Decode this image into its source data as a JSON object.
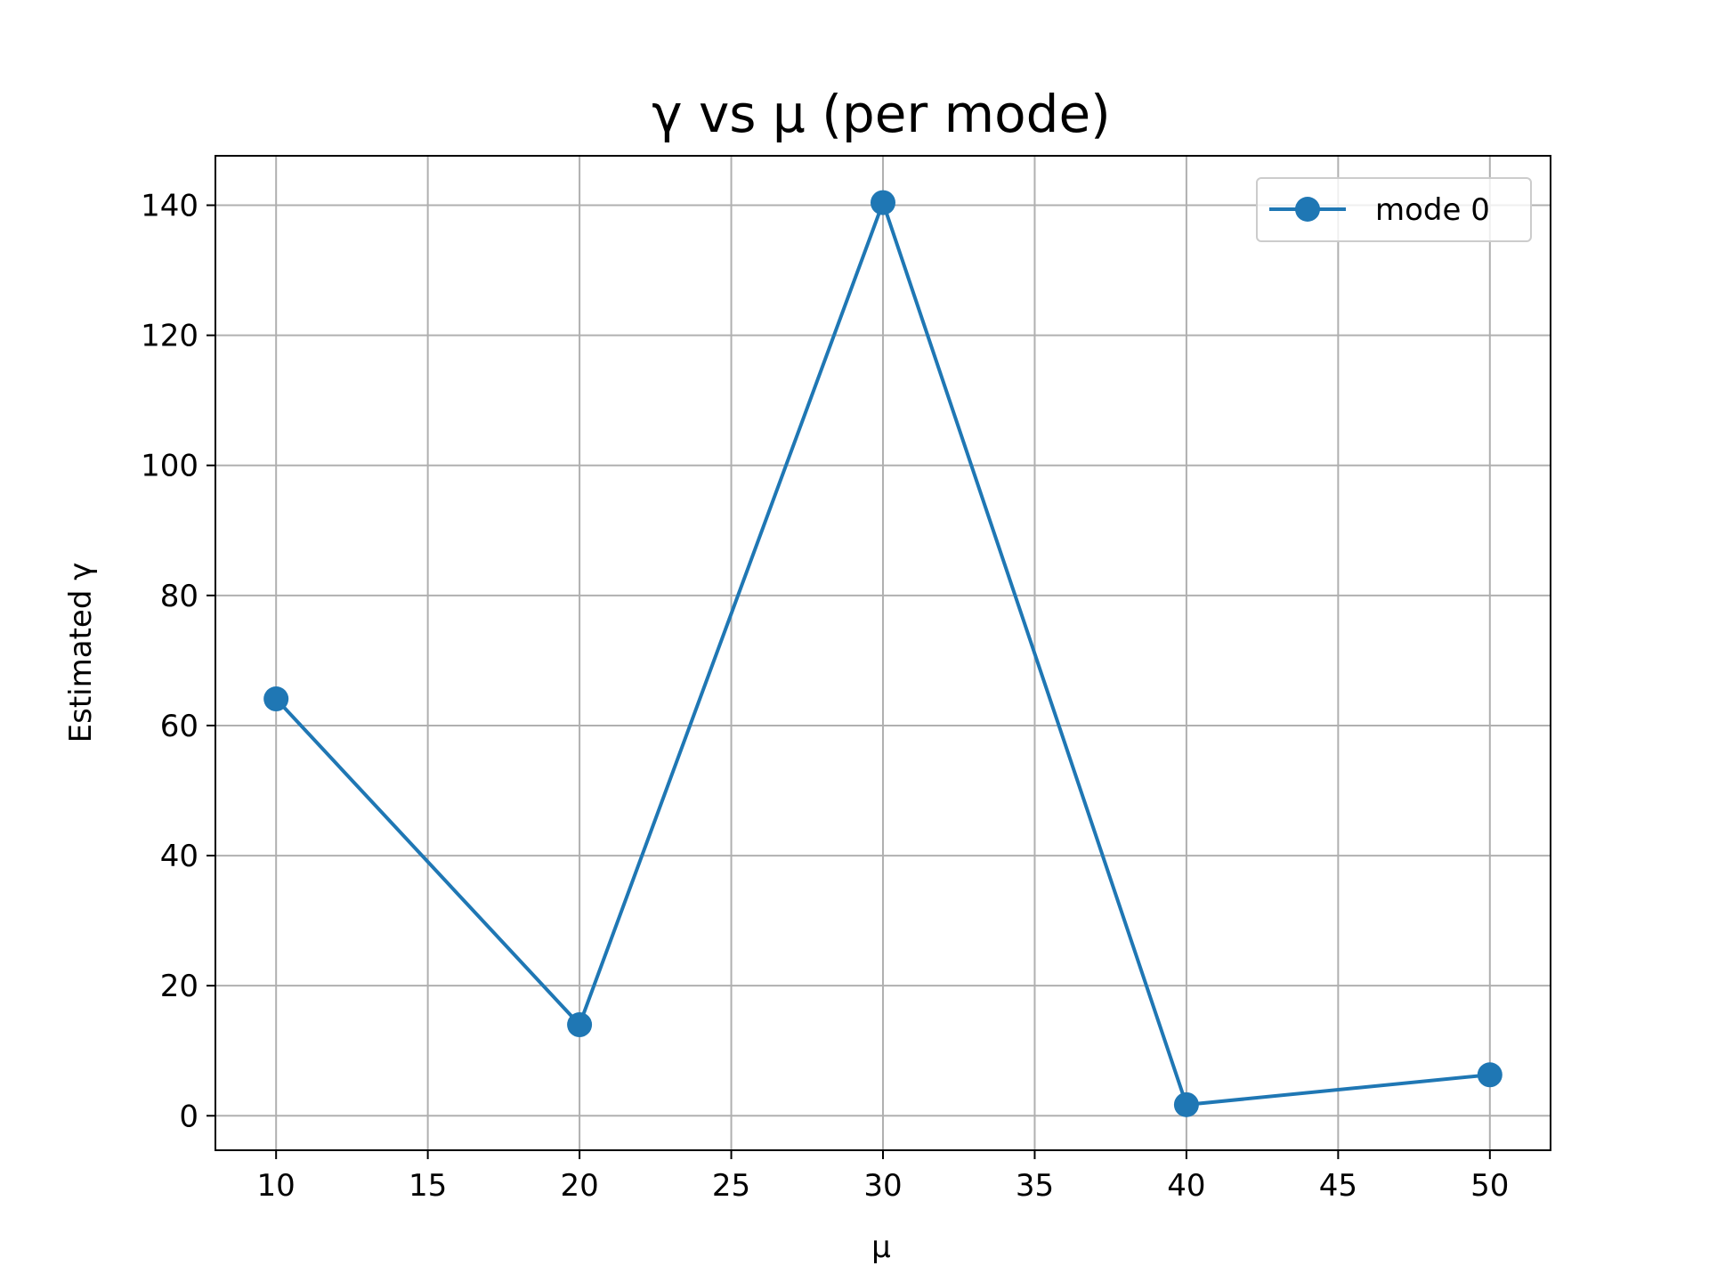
{
  "chart_data": {
    "type": "line",
    "title": "γ vs μ (per mode)",
    "xlabel": "μ",
    "ylabel": "Estimated γ",
    "xlim": [
      8,
      52
    ],
    "ylim": [
      -5.3,
      147.6
    ],
    "xticks": [
      10,
      15,
      20,
      25,
      30,
      35,
      40,
      45,
      50
    ],
    "yticks": [
      0,
      20,
      40,
      60,
      80,
      100,
      120,
      140
    ],
    "grid": true,
    "legend_position": "top-right",
    "x": [
      10,
      20,
      30,
      40,
      50
    ],
    "series": [
      {
        "name": "mode 0",
        "values": [
          64.1,
          14.0,
          140.4,
          1.7,
          6.3
        ],
        "color": "#1f77b4",
        "marker": "circle"
      }
    ]
  }
}
